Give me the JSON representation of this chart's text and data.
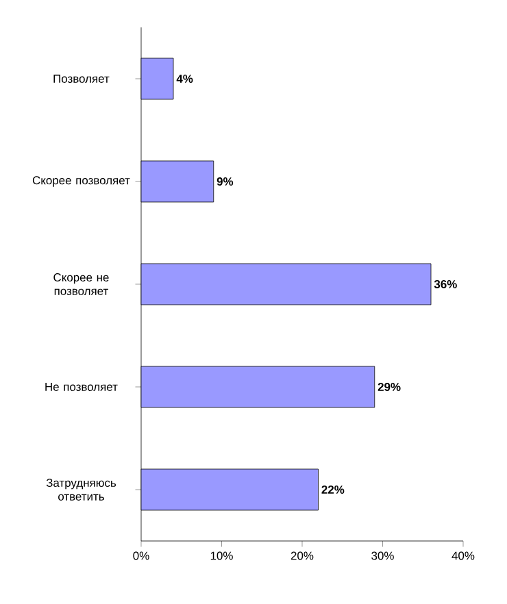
{
  "chart_data": {
    "type": "bar",
    "orientation": "horizontal",
    "categories": [
      "Позволяет",
      "Скорее позволяет",
      "Скорее не позволяет",
      "Не позволяет",
      "Затрудняюсь ответить"
    ],
    "values": [
      4,
      9,
      36,
      29,
      22
    ],
    "value_labels": [
      "4%",
      "9%",
      "36%",
      "29%",
      "22%"
    ],
    "color": "#9999ff",
    "xlim": [
      0,
      40
    ],
    "xticks": [
      {
        "value": 0,
        "label": "0%"
      },
      {
        "value": 10,
        "label": "10%"
      },
      {
        "value": 20,
        "label": "20%"
      },
      {
        "value": 30,
        "label": "30%"
      },
      {
        "value": 40,
        "label": "40%"
      }
    ],
    "grid": false
  }
}
